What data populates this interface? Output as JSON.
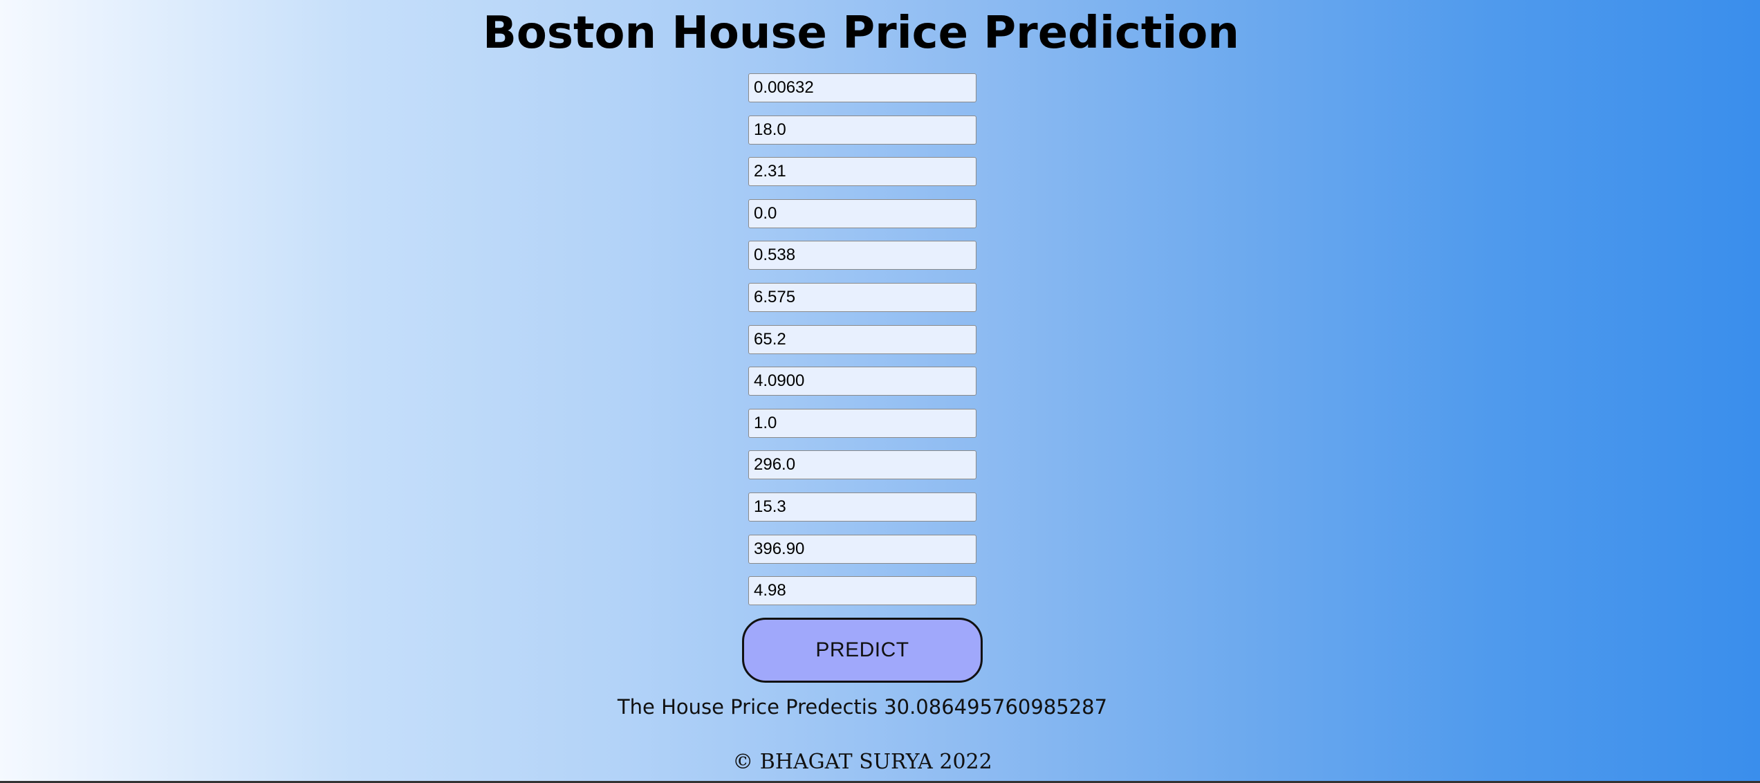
{
  "page": {
    "title": "Boston House Price Prediction"
  },
  "form": {
    "fields": [
      "0.00632",
      "18.0",
      "2.31",
      "0.0",
      "0.538",
      "6.575",
      "65.2",
      "4.0900",
      "1.0",
      "296.0",
      "15.3",
      "396.90",
      "4.98"
    ],
    "predict_label": "PREDICT"
  },
  "result": {
    "text": "The House Price Predectis 30.086495760985287"
  },
  "footer": {
    "text": "© BHAGAT SURYA 2022"
  },
  "colors": {
    "button_fill": "#a0a8fb",
    "input_fill": "#e8f0fe",
    "gradient_start": "#f5f9ff",
    "gradient_end": "#3a8eec"
  }
}
